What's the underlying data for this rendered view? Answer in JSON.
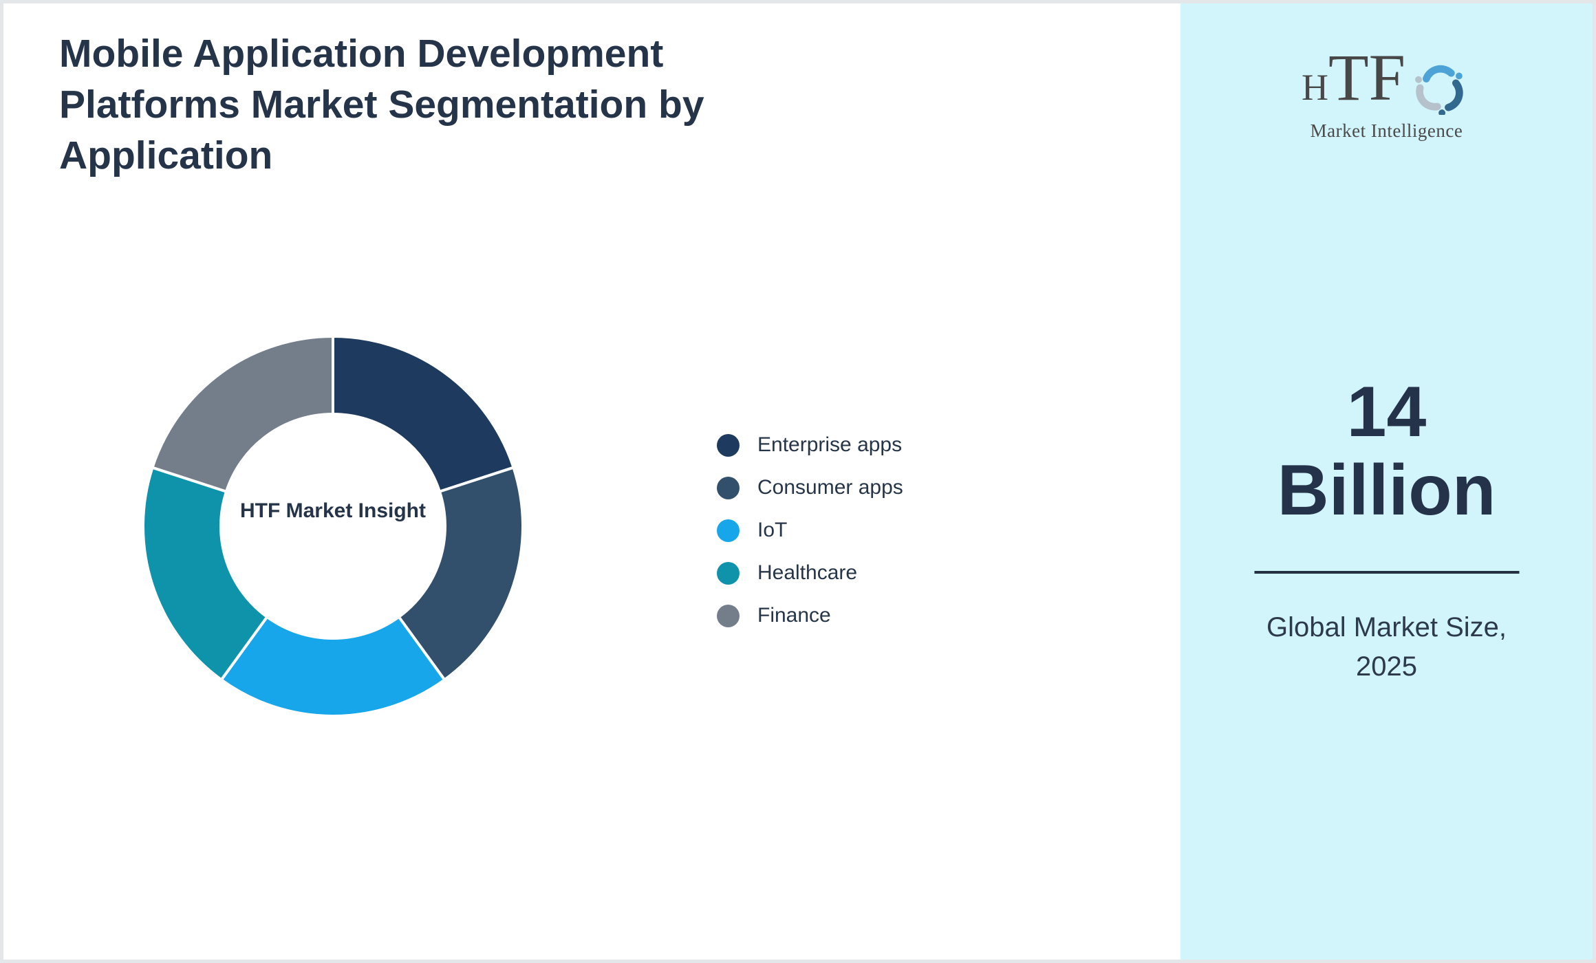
{
  "page": {
    "background": "#ffffff",
    "border_color": "#e4e7ea",
    "text_color": "#263449"
  },
  "chart_data": {
    "type": "pie",
    "subtype": "donut",
    "title": "Mobile Application Development Platforms Market Segmentation by Application",
    "center_label": "HTF Market Insight",
    "categories": [
      "Enterprise apps",
      "Consumer apps",
      "IoT",
      "Healthcare",
      "Finance"
    ],
    "values": [
      20,
      20,
      20,
      20,
      20
    ],
    "colors": [
      "#1e3a5e",
      "#32506b",
      "#18a6ea",
      "#0f93aa",
      "#747e8b"
    ],
    "start_angle_deg": 0,
    "direction": "clockwise",
    "inner_radius_ratio": 0.59,
    "slice_border_color": "#ffffff",
    "legend_position": "right-middle",
    "data_labels_shown": false
  },
  "sidebar": {
    "background_color": "#d2f4fb",
    "logo": {
      "brand": "HTF",
      "subtitle": "Market Intelligence",
      "icon": "dolphin-swirl-icon",
      "icon_colors": [
        "#4ea3d6",
        "#33688f",
        "#b5c1cb"
      ],
      "text_color": "#474747"
    },
    "stat": {
      "lines": [
        "14",
        "Billion"
      ],
      "color": "#25334a"
    },
    "divider_color": "#233143",
    "caption_lines": [
      "Global Market Size,",
      "2025"
    ]
  }
}
